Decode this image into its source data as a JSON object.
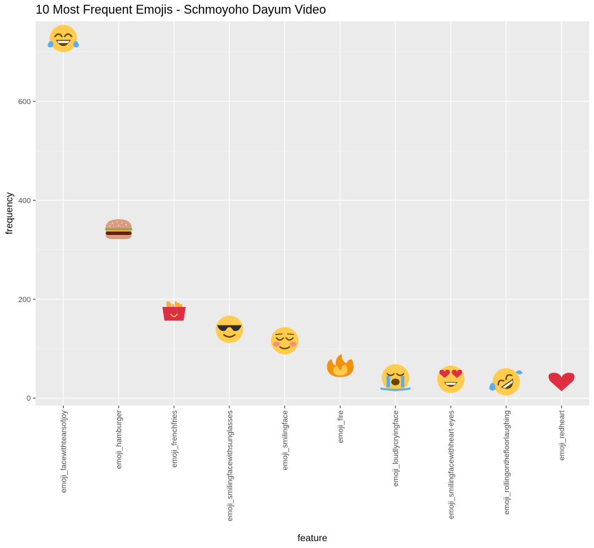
{
  "chart_data": {
    "type": "scatter",
    "title": "10 Most Frequent Emojis - Schmoyoho Dayum Video",
    "xlabel": "feature",
    "ylabel": "frequency",
    "ylim": [
      -15,
      762
    ],
    "yticks": [
      0,
      200,
      400,
      600
    ],
    "grid": true,
    "legend": "none",
    "categories": [
      "emoji_facewithtearsofjoy",
      "emoji_hamburger",
      "emoji_frenchfries",
      "emoji_smilingfacewithsunglasses",
      "emoji_smilingface",
      "emoji_fire",
      "emoji_loudlycryingface",
      "emoji_smilingfacewithheart-eyes",
      "emoji_rollingonthefloorlaughing",
      "emoji_redheart"
    ],
    "values": [
      727,
      341,
      176,
      139,
      116,
      62,
      41,
      38,
      33,
      32
    ],
    "markers": [
      "face-with-tears-of-joy-icon",
      "hamburger-icon",
      "french-fries-icon",
      "smiling-face-with-sunglasses-icon",
      "smiling-face-icon",
      "fire-icon",
      "loudly-crying-face-icon",
      "smiling-face-with-heart-eyes-icon",
      "rolling-on-the-floor-laughing-icon",
      "red-heart-icon"
    ],
    "colors": {
      "panel": "#ebebeb",
      "face": "#ffcc4d",
      "tear": "#5dadec",
      "mouth": "#664500",
      "heart": "#dd2e44",
      "fire_outer": "#f4900c",
      "fire_inner": "#ffcc4d",
      "bun": "#d99e82",
      "patty": "#662113",
      "lettuce": "#77b255",
      "fries": "#ffac33",
      "fries_box": "#dd2e44",
      "blush": "#ff7892"
    }
  }
}
